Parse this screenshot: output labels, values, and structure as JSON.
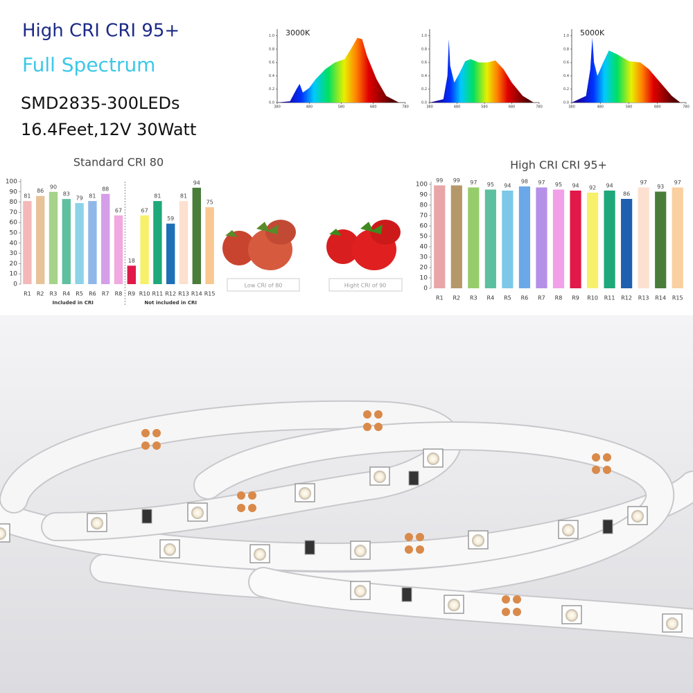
{
  "header": {
    "title": "High CRI CRI 95+",
    "subtitle": "Full Spectrum",
    "line1": "SMD2835-300LEDs",
    "line2": "16.4Feet,12V 30Watt"
  },
  "chart_data": [
    {
      "type": "area",
      "annotation": "3000K",
      "x": [
        380,
        420,
        440,
        450,
        460,
        480,
        500,
        530,
        560,
        590,
        610,
        630,
        645,
        660,
        690,
        720,
        760
      ],
      "values": [
        0,
        0.02,
        0.2,
        0.28,
        0.15,
        0.22,
        0.35,
        0.5,
        0.6,
        0.65,
        0.8,
        0.97,
        0.95,
        0.7,
        0.35,
        0.1,
        0
      ],
      "xlim": [
        380,
        780
      ],
      "xticks": [
        380,
        480,
        580,
        680,
        780
      ],
      "ylim": [
        0,
        1.1
      ],
      "yticks": [
        {
          "value": 0,
          "label": "0.0"
        },
        {
          "value": 0.2,
          "label": "0.2"
        },
        {
          "value": 0.4,
          "label": "0.4"
        },
        {
          "value": 0.6,
          "label": "0.6"
        },
        {
          "value": 0.8,
          "label": "0.8"
        },
        {
          "value": 1,
          "label": "1.0"
        }
      ]
    },
    {
      "type": "area",
      "x": [
        380,
        430,
        445,
        450,
        455,
        470,
        490,
        510,
        530,
        560,
        590,
        620,
        650,
        680,
        720,
        760
      ],
      "values": [
        0,
        0.05,
        0.4,
        0.95,
        0.55,
        0.3,
        0.45,
        0.62,
        0.65,
        0.6,
        0.6,
        0.63,
        0.5,
        0.3,
        0.1,
        0
      ],
      "xlim": [
        380,
        780
      ],
      "xticks": [
        380,
        480,
        580,
        680,
        780
      ],
      "ylim": [
        0,
        1.1
      ],
      "yticks": [
        {
          "value": 0,
          "label": "0.0"
        },
        {
          "value": 0.2,
          "label": "0.2"
        },
        {
          "value": 0.4,
          "label": "0.4"
        },
        {
          "value": 0.6,
          "label": "0.6"
        },
        {
          "value": 0.8,
          "label": "0.8"
        },
        {
          "value": 1,
          "label": "1.0"
        }
      ]
    },
    {
      "type": "area",
      "annotation": "5000K",
      "x": [
        380,
        430,
        445,
        452,
        458,
        470,
        490,
        510,
        540,
        580,
        620,
        650,
        690,
        730,
        760
      ],
      "values": [
        0,
        0.1,
        0.5,
        0.97,
        0.6,
        0.4,
        0.6,
        0.78,
        0.72,
        0.62,
        0.6,
        0.5,
        0.3,
        0.1,
        0
      ],
      "xlim": [
        380,
        780
      ],
      "xticks": [
        380,
        480,
        580,
        680,
        780
      ],
      "ylim": [
        0,
        1.1
      ],
      "yticks": [
        {
          "value": 0,
          "label": "0.0"
        },
        {
          "value": 0.2,
          "label": "0.2"
        },
        {
          "value": 0.4,
          "label": "0.4"
        },
        {
          "value": 0.6,
          "label": "0.6"
        },
        {
          "value": 0.8,
          "label": "0.8"
        },
        {
          "value": 1,
          "label": "1.0"
        }
      ]
    },
    {
      "type": "bar",
      "title": "Standard CRI 80",
      "categories": [
        "R1",
        "R2",
        "R3",
        "R4",
        "R5",
        "R6",
        "R7",
        "R8",
        "R9",
        "R10",
        "R11",
        "R12",
        "R13",
        "R14",
        "R15"
      ],
      "values": [
        81,
        86,
        90,
        83,
        79,
        81,
        88,
        67,
        18,
        67,
        81,
        59,
        81,
        94,
        75
      ],
      "colors": [
        "#f4b8b8",
        "#e8c39a",
        "#a6d38a",
        "#5fbf9f",
        "#8dd3e8",
        "#8fb8e8",
        "#d59ee8",
        "#f2a8e0",
        "#e0194a",
        "#f7f06a",
        "#1fa87a",
        "#1e6fb8",
        "#fde0d0",
        "#4a7d3a",
        "#f9c890"
      ],
      "group_labels": [
        "Included in CRI",
        "Not included in CRI"
      ],
      "ylim": [
        0,
        100
      ],
      "yticks": [
        0,
        10,
        20,
        30,
        40,
        50,
        60,
        70,
        80,
        90,
        100
      ]
    },
    {
      "type": "bar",
      "title": "High CRI CRI 95+",
      "categories": [
        "R1",
        "R2",
        "R3",
        "R4",
        "R5",
        "R6",
        "R7",
        "R8",
        "R9",
        "R10",
        "R11",
        "R12",
        "R13",
        "R14",
        "R15"
      ],
      "values": [
        99,
        99,
        97,
        95,
        94,
        98,
        97,
        95,
        94,
        92,
        94,
        86,
        97,
        93,
        97
      ],
      "colors": [
        "#e8a6a8",
        "#b5986a",
        "#97cc6a",
        "#5cc0a0",
        "#7cc8e8",
        "#6aa8e8",
        "#b590e8",
        "#f2a0e8",
        "#e0194a",
        "#f7f06a",
        "#1fa87a",
        "#1e5fb0",
        "#fde0d0",
        "#4a7d3a",
        "#fad0a0"
      ],
      "ylim": [
        0,
        100
      ],
      "yticks": [
        0,
        10,
        20,
        30,
        40,
        50,
        60,
        70,
        80,
        90,
        100
      ]
    }
  ],
  "captions": [
    "Low CRI of 80",
    "Hight CRI of 90"
  ]
}
